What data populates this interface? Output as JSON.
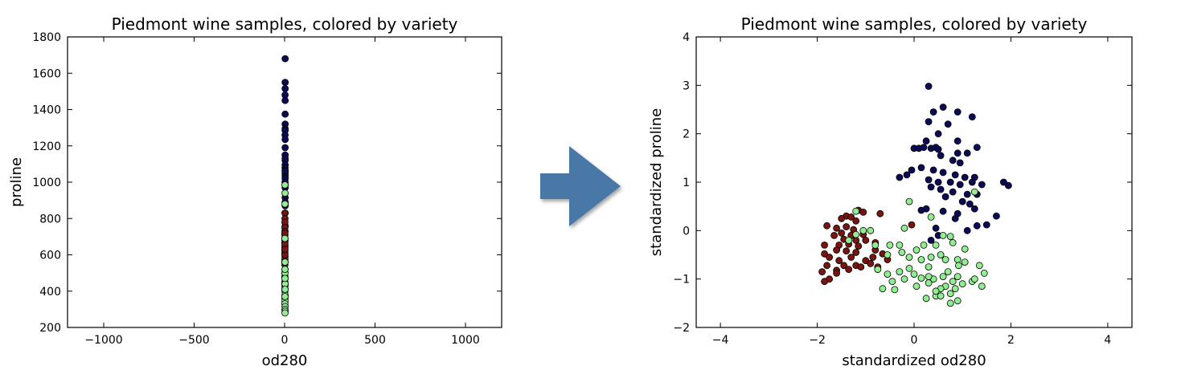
{
  "arrow": {
    "color": "#4a78a6"
  },
  "chart_data": [
    {
      "type": "scatter",
      "title": "Piedmont wine samples, colored by variety",
      "xlabel": "od280",
      "ylabel": "proline",
      "xlim": [
        -1200,
        1200
      ],
      "ylim": [
        200,
        1800
      ],
      "xticks": [
        -1000,
        -500,
        0,
        500,
        1000
      ],
      "yticks": [
        200,
        400,
        600,
        800,
        1000,
        1200,
        1400,
        1600,
        1800
      ],
      "xtick_labels": [
        "−1000",
        "−500",
        "0",
        "500",
        "1000"
      ],
      "ytick_labels": [
        "200",
        "400",
        "600",
        "800",
        "1000",
        "1200",
        "1400",
        "1600",
        "1800"
      ],
      "grid": false,
      "series": [
        {
          "color": "#0b0b55",
          "points": [
            [
              3.0,
              1680
            ],
            [
              2.9,
              1550
            ],
            [
              3.1,
              1515
            ],
            [
              2.8,
              1480
            ],
            [
              3.2,
              1450
            ],
            [
              3.0,
              1375
            ],
            [
              2.9,
              1320
            ],
            [
              3.1,
              1295
            ],
            [
              3.0,
              1285
            ],
            [
              2.8,
              1260
            ],
            [
              3.2,
              1235
            ],
            [
              3.0,
              1190
            ],
            [
              2.9,
              1150
            ],
            [
              3.1,
              1120
            ],
            [
              3.0,
              1095
            ],
            [
              2.8,
              1080
            ],
            [
              3.0,
              1065
            ],
            [
              3.1,
              1050
            ],
            [
              2.9,
              1035
            ],
            [
              3.0,
              1020
            ],
            [
              3.2,
              985
            ],
            [
              2.9,
              970
            ],
            [
              3.0,
              915
            ],
            [
              3.1,
              890
            ],
            [
              3.0,
              870
            ],
            [
              2.9,
              830
            ],
            [
              3.0,
              760
            ],
            [
              3.1,
              1060
            ],
            [
              2.8,
              1000
            ],
            [
              3.0,
              1130
            ]
          ]
        },
        {
          "color": "#7a1410",
          "points": [
            [
              2.0,
              830
            ],
            [
              2.1,
              800
            ],
            [
              2.0,
              780
            ],
            [
              1.9,
              750
            ],
            [
              2.1,
              730
            ],
            [
              2.0,
              710
            ],
            [
              1.9,
              690
            ],
            [
              2.0,
              670
            ],
            [
              2.1,
              650
            ],
            [
              2.0,
              640
            ],
            [
              1.9,
              625
            ],
            [
              2.0,
              610
            ],
            [
              2.1,
              590
            ],
            [
              2.0,
              575
            ],
            [
              1.9,
              560
            ],
            [
              2.0,
              545
            ],
            [
              2.1,
              520
            ],
            [
              2.0,
              500
            ],
            [
              1.9,
              480
            ],
            [
              2.0,
              450
            ],
            [
              2.1,
              430
            ],
            [
              2.0,
              415
            ],
            [
              1.9,
              600
            ],
            [
              2.0,
              560
            ],
            [
              2.1,
              680
            ],
            [
              2.0,
              720
            ],
            [
              1.9,
              660
            ],
            [
              2.0,
              630
            ],
            [
              2.1,
              470
            ],
            [
              2.0,
              440
            ]
          ]
        },
        {
          "color": "#90ee90",
          "points": [
            [
              2.3,
              985
            ],
            [
              2.6,
              940
            ],
            [
              2.2,
              880
            ],
            [
              2.0,
              690
            ],
            [
              2.4,
              560
            ],
            [
              2.1,
              500
            ],
            [
              2.5,
              440
            ],
            [
              2.0,
              400
            ],
            [
              2.6,
              380
            ],
            [
              2.2,
              360
            ],
            [
              2.4,
              345
            ],
            [
              2.0,
              330
            ],
            [
              2.5,
              315
            ],
            [
              2.3,
              300
            ],
            [
              2.6,
              290
            ],
            [
              2.1,
              280
            ],
            [
              2.4,
              520
            ],
            [
              2.2,
              470
            ],
            [
              2.5,
              410
            ],
            [
              2.3,
              370
            ]
          ]
        }
      ]
    },
    {
      "type": "scatter",
      "title": "Piedmont wine samples, colored by variety",
      "xlabel": "standardized od280",
      "ylabel": "standardized proline",
      "xlim": [
        -4.5,
        4.5
      ],
      "ylim": [
        -2,
        4
      ],
      "xticks": [
        -4,
        -2,
        0,
        2,
        4
      ],
      "yticks": [
        -2,
        -1,
        0,
        1,
        2,
        3,
        4
      ],
      "xtick_labels": [
        "−4",
        "−2",
        "0",
        "2",
        "4"
      ],
      "ytick_labels": [
        "−2",
        "−1",
        "0",
        "1",
        "2",
        "3",
        "4"
      ],
      "grid": false,
      "series": [
        {
          "color": "#0b0b55",
          "points": [
            [
              0.3,
              2.98
            ],
            [
              0.6,
              2.55
            ],
            [
              0.4,
              2.45
            ],
            [
              0.9,
              2.45
            ],
            [
              1.2,
              2.35
            ],
            [
              0.3,
              2.25
            ],
            [
              0.7,
              2.2
            ],
            [
              0.5,
              2.0
            ],
            [
              0.25,
              1.85
            ],
            [
              0.9,
              1.85
            ],
            [
              0.0,
              1.7
            ],
            [
              0.1,
              1.7
            ],
            [
              0.2,
              1.72
            ],
            [
              0.35,
              1.7
            ],
            [
              0.45,
              1.72
            ],
            [
              0.5,
              1.68
            ],
            [
              0.9,
              1.6
            ],
            [
              1.1,
              1.6
            ],
            [
              1.3,
              1.72
            ],
            [
              0.55,
              1.55
            ],
            [
              0.8,
              1.45
            ],
            [
              0.95,
              1.4
            ],
            [
              -0.05,
              1.25
            ],
            [
              -0.15,
              1.15
            ],
            [
              0.15,
              1.3
            ],
            [
              0.4,
              1.25
            ],
            [
              0.6,
              1.2
            ],
            [
              0.85,
              1.15
            ],
            [
              1.05,
              1.1
            ],
            [
              1.25,
              1.1
            ],
            [
              -0.3,
              1.1
            ],
            [
              0.3,
              1.05
            ],
            [
              0.5,
              1.0
            ],
            [
              0.75,
              1.0
            ],
            [
              0.95,
              0.95
            ],
            [
              1.2,
              1.0
            ],
            [
              1.4,
              0.95
            ],
            [
              1.85,
              1.0
            ],
            [
              1.95,
              0.93
            ],
            [
              0.55,
              0.85
            ],
            [
              0.35,
              0.9
            ],
            [
              0.8,
              0.8
            ],
            [
              1.1,
              0.75
            ],
            [
              1.3,
              0.75
            ],
            [
              1.0,
              0.6
            ],
            [
              1.15,
              0.55
            ],
            [
              0.6,
              0.4
            ],
            [
              0.9,
              0.35
            ],
            [
              1.7,
              0.3
            ],
            [
              0.15,
              0.42
            ],
            [
              1.3,
              0.1
            ],
            [
              1.5,
              0.12
            ],
            [
              0.25,
              0.45
            ],
            [
              0.45,
              0.05
            ],
            [
              0.5,
              -0.1
            ],
            [
              0.35,
              -0.2
            ],
            [
              1.1,
              0.0
            ],
            [
              0.85,
              0.25
            ],
            [
              1.25,
              0.45
            ],
            [
              0.65,
              0.7
            ]
          ]
        },
        {
          "color": "#7a1410",
          "points": [
            [
              -1.15,
              0.42
            ],
            [
              -1.05,
              0.38
            ],
            [
              -1.4,
              0.3
            ],
            [
              -1.3,
              0.28
            ],
            [
              -0.7,
              0.35
            ],
            [
              -1.5,
              0.25
            ],
            [
              -1.2,
              0.2
            ],
            [
              -0.05,
              0.12
            ],
            [
              -1.8,
              0.1
            ],
            [
              -1.6,
              0.05
            ],
            [
              -1.4,
              0.08
            ],
            [
              -1.25,
              0.02
            ],
            [
              -1.5,
              -0.05
            ],
            [
              -1.3,
              -0.1
            ],
            [
              -1.65,
              -0.1
            ],
            [
              -1.45,
              -0.18
            ],
            [
              -1.2,
              -0.2
            ],
            [
              -1.0,
              -0.2
            ],
            [
              -0.8,
              -0.25
            ],
            [
              -1.85,
              -0.3
            ],
            [
              -1.55,
              -0.3
            ],
            [
              -1.35,
              -0.28
            ],
            [
              -1.15,
              -0.32
            ],
            [
              -1.6,
              -0.4
            ],
            [
              -1.4,
              -0.42
            ],
            [
              -1.2,
              -0.45
            ],
            [
              -1.85,
              -0.48
            ],
            [
              -1.75,
              -0.55
            ],
            [
              -1.3,
              -0.55
            ],
            [
              -0.85,
              -0.55
            ],
            [
              -1.55,
              -0.62
            ],
            [
              -1.0,
              -0.62
            ],
            [
              -1.8,
              -0.72
            ],
            [
              -1.45,
              -0.72
            ],
            [
              -1.2,
              -0.72
            ],
            [
              -0.9,
              -0.68
            ],
            [
              -0.55,
              -0.6
            ],
            [
              -1.6,
              -0.82
            ],
            [
              -1.35,
              -0.8
            ],
            [
              -1.1,
              -0.75
            ],
            [
              -0.75,
              -0.75
            ],
            [
              -1.9,
              -0.85
            ],
            [
              -1.6,
              -0.88
            ],
            [
              -1.75,
              -1.0
            ],
            [
              -1.85,
              -1.05
            ],
            [
              -0.65,
              -0.48
            ],
            [
              -0.8,
              -0.4
            ],
            [
              -1.05,
              -0.08
            ]
          ]
        },
        {
          "color": "#90ee90",
          "points": [
            [
              -1.2,
              0.4
            ],
            [
              -1.05,
              0.0
            ],
            [
              -0.9,
              0.0
            ],
            [
              -0.2,
              0.05
            ],
            [
              -0.1,
              0.6
            ],
            [
              1.25,
              0.8
            ],
            [
              0.35,
              0.28
            ],
            [
              -1.2,
              -0.08
            ],
            [
              -1.35,
              -0.2
            ],
            [
              -0.8,
              -0.3
            ],
            [
              -0.3,
              -0.3
            ],
            [
              -0.5,
              -0.3
            ],
            [
              -0.25,
              -0.45
            ],
            [
              0.05,
              -0.4
            ],
            [
              0.2,
              -0.3
            ],
            [
              0.45,
              -0.3
            ],
            [
              0.6,
              -0.1
            ],
            [
              0.75,
              -0.12
            ],
            [
              0.8,
              -0.25
            ],
            [
              1.05,
              -0.38
            ],
            [
              0.15,
              -0.6
            ],
            [
              0.35,
              -0.55
            ],
            [
              0.55,
              -0.5
            ],
            [
              0.65,
              -0.6
            ],
            [
              0.9,
              -0.6
            ],
            [
              1.05,
              -0.65
            ],
            [
              1.35,
              -0.72
            ],
            [
              0.3,
              -0.75
            ],
            [
              -0.1,
              -0.78
            ],
            [
              -0.3,
              -0.85
            ],
            [
              -0.55,
              -0.9
            ],
            [
              -0.75,
              -0.8
            ],
            [
              0.0,
              -0.9
            ],
            [
              0.15,
              -0.98
            ],
            [
              0.4,
              -1.0
            ],
            [
              0.7,
              -0.85
            ],
            [
              0.9,
              -0.95
            ],
            [
              0.8,
              -1.05
            ],
            [
              0.65,
              -1.15
            ],
            [
              0.85,
              -1.2
            ],
            [
              1.0,
              -1.1
            ],
            [
              1.2,
              -1.05
            ],
            [
              1.45,
              -0.88
            ],
            [
              1.25,
              -1.0
            ],
            [
              -0.45,
              -1.05
            ],
            [
              -0.2,
              -1.0
            ],
            [
              0.3,
              -1.08
            ],
            [
              0.55,
              -1.2
            ],
            [
              0.75,
              -1.3
            ],
            [
              0.45,
              -1.35
            ],
            [
              0.25,
              -1.4
            ],
            [
              0.9,
              -1.45
            ],
            [
              0.75,
              -1.5
            ],
            [
              -0.4,
              -1.22
            ],
            [
              -0.65,
              -1.2
            ],
            [
              0.05,
              -1.15
            ],
            [
              0.55,
              -1.35
            ],
            [
              1.4,
              -1.15
            ],
            [
              0.6,
              -0.95
            ],
            [
              -0.1,
              -0.55
            ],
            [
              0.3,
              -0.95
            ],
            [
              0.92,
              -0.72
            ],
            [
              -0.55,
              -0.5
            ],
            [
              0.45,
              -1.25
            ]
          ]
        }
      ]
    }
  ]
}
